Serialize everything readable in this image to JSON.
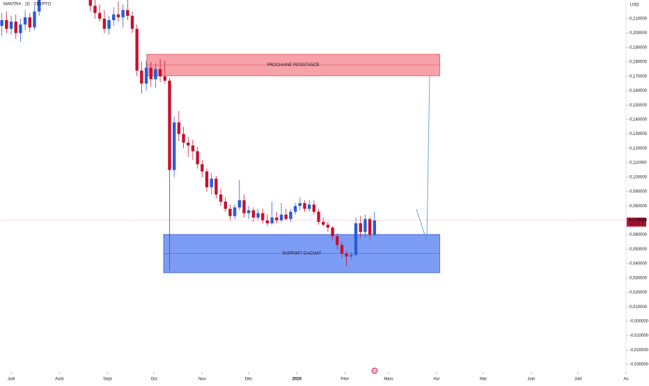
{
  "chart_data": {
    "type": "candlestick",
    "title": "MANTRA · 1D · CRYPTO",
    "currency": "USD",
    "up_color": "#2a5bd7",
    "down_color": "#c8102e",
    "xlim": [
      -7.2,
      396
    ],
    "ylim": [
      -0.0353,
      0.223
    ],
    "xticks": [
      {
        "value": 0,
        "label": "Juill"
      },
      {
        "value": 31,
        "label": "Août"
      },
      {
        "value": 62,
        "label": "Sept"
      },
      {
        "value": 92,
        "label": "Oct"
      },
      {
        "value": 123,
        "label": "Nov"
      },
      {
        "value": 153,
        "label": "Déc"
      },
      {
        "value": 184,
        "label": "2026"
      },
      {
        "value": 215,
        "label": "Févr"
      },
      {
        "value": 243,
        "label": "Mars"
      },
      {
        "value": 274,
        "label": "Avr"
      },
      {
        "value": 304,
        "label": "Mai"
      },
      {
        "value": 335,
        "label": "Juin"
      },
      {
        "value": 365,
        "label": "Juill"
      },
      {
        "value": 396,
        "label": "Ao"
      }
    ],
    "yticks": [
      {
        "value": 0.21,
        "label": "0,210000"
      },
      {
        "value": 0.2,
        "label": "0,200000"
      },
      {
        "value": 0.19,
        "label": "0,190000"
      },
      {
        "value": 0.18,
        "label": "0,180000"
      },
      {
        "value": 0.17,
        "label": "0,170000"
      },
      {
        "value": 0.16,
        "label": "0,160000"
      },
      {
        "value": 0.15,
        "label": "0,150000"
      },
      {
        "value": 0.14,
        "label": "0,140000"
      },
      {
        "value": 0.13,
        "label": "0,130000"
      },
      {
        "value": 0.12,
        "label": "0,120000"
      },
      {
        "value": 0.11,
        "label": "0,110000"
      },
      {
        "value": 0.1,
        "label": "0,100000"
      },
      {
        "value": 0.09,
        "label": "0,090000"
      },
      {
        "value": 0.08,
        "label": "0,080000"
      },
      {
        "value": 0.07,
        "label": "0,070000"
      },
      {
        "value": 0.06,
        "label": "0,060000"
      },
      {
        "value": 0.05,
        "label": "0,050000"
      },
      {
        "value": 0.04,
        "label": "0,040000"
      },
      {
        "value": 0.03,
        "label": "0,030000"
      },
      {
        "value": 0.02,
        "label": "0,020000"
      },
      {
        "value": 0.01,
        "label": "0,010000"
      },
      {
        "value": 0,
        "label": "-0,000000"
      },
      {
        "value": -0.01,
        "label": "-0,010000"
      },
      {
        "value": -0.02,
        "label": "-0,020000"
      },
      {
        "value": -0.03,
        "label": "-0,030000"
      }
    ],
    "x": [
      -6,
      -3,
      0,
      3,
      6,
      9,
      12,
      15,
      18,
      51,
      54,
      57,
      60,
      63,
      66,
      69,
      72,
      75,
      78,
      81,
      84,
      87,
      90,
      93,
      96,
      99,
      102,
      105,
      108,
      111,
      114,
      117,
      120,
      123,
      126,
      129,
      132,
      135,
      138,
      141,
      144,
      147,
      150,
      153,
      156,
      159,
      162,
      165,
      168,
      171,
      174,
      177,
      180,
      183,
      186,
      189,
      192,
      195,
      198,
      201,
      204,
      207,
      210,
      213,
      216,
      219,
      222,
      225,
      228,
      231,
      234
    ],
    "open": [
      0.205,
      0.209,
      0.203,
      0.208,
      0.2,
      0.206,
      0.211,
      0.204,
      0.215,
      0.226,
      0.219,
      0.214,
      0.21,
      0.203,
      0.209,
      0.213,
      0.211,
      0.216,
      0.212,
      0.203,
      0.174,
      0.165,
      0.176,
      0.168,
      0.175,
      0.17,
      0.167,
      0.105,
      0.138,
      0.13,
      0.124,
      0.122,
      0.118,
      0.109,
      0.104,
      0.093,
      0.099,
      0.088,
      0.083,
      0.078,
      0.073,
      0.079,
      0.084,
      0.075,
      0.077,
      0.072,
      0.075,
      0.07,
      0.068,
      0.072,
      0.07,
      0.074,
      0.071,
      0.076,
      0.08,
      0.082,
      0.078,
      0.081,
      0.076,
      0.069,
      0.067,
      0.065,
      0.059,
      0.053,
      0.047,
      0.045,
      0.046,
      0.068,
      0.062,
      0.071,
      0.06
    ],
    "high": [
      0.214,
      0.215,
      0.212,
      0.213,
      0.21,
      0.216,
      0.214,
      0.219,
      0.228,
      0.23,
      0.224,
      0.22,
      0.216,
      0.212,
      0.218,
      0.222,
      0.22,
      0.224,
      0.215,
      0.206,
      0.18,
      0.181,
      0.18,
      0.179,
      0.182,
      0.181,
      0.169,
      0.142,
      0.146,
      0.135,
      0.128,
      0.126,
      0.121,
      0.112,
      0.106,
      0.103,
      0.101,
      0.092,
      0.086,
      0.081,
      0.081,
      0.098,
      0.088,
      0.08,
      0.079,
      0.078,
      0.078,
      0.074,
      0.083,
      0.076,
      0.082,
      0.078,
      0.078,
      0.082,
      0.086,
      0.084,
      0.084,
      0.084,
      0.078,
      0.072,
      0.069,
      0.066,
      0.061,
      0.055,
      0.049,
      0.048,
      0.072,
      0.073,
      0.074,
      0.072,
      0.076
    ],
    "low": [
      0.198,
      0.2,
      0.199,
      0.196,
      0.194,
      0.202,
      0.201,
      0.202,
      0.212,
      0.215,
      0.21,
      0.208,
      0.2,
      0.199,
      0.205,
      0.208,
      0.204,
      0.209,
      0.2,
      0.17,
      0.158,
      0.16,
      0.163,
      0.162,
      0.166,
      0.165,
      0.035,
      0.1,
      0.125,
      0.12,
      0.114,
      0.112,
      0.106,
      0.1,
      0.09,
      0.088,
      0.085,
      0.08,
      0.076,
      0.07,
      0.071,
      0.077,
      0.072,
      0.071,
      0.069,
      0.07,
      0.068,
      0.066,
      0.067,
      0.068,
      0.069,
      0.07,
      0.069,
      0.074,
      0.077,
      0.076,
      0.076,
      0.074,
      0.067,
      0.066,
      0.062,
      0.056,
      0.05,
      0.044,
      0.038,
      0.043,
      0.045,
      0.058,
      0.058,
      0.057,
      0.059
    ],
    "close": [
      0.209,
      0.203,
      0.208,
      0.2,
      0.206,
      0.211,
      0.204,
      0.215,
      0.224,
      0.219,
      0.214,
      0.21,
      0.203,
      0.209,
      0.213,
      0.211,
      0.216,
      0.212,
      0.203,
      0.174,
      0.165,
      0.176,
      0.168,
      0.175,
      0.17,
      0.167,
      0.105,
      0.138,
      0.13,
      0.124,
      0.122,
      0.118,
      0.109,
      0.104,
      0.093,
      0.099,
      0.088,
      0.083,
      0.078,
      0.073,
      0.079,
      0.084,
      0.075,
      0.077,
      0.072,
      0.075,
      0.07,
      0.068,
      0.072,
      0.07,
      0.074,
      0.071,
      0.076,
      0.08,
      0.082,
      0.078,
      0.081,
      0.076,
      0.069,
      0.067,
      0.065,
      0.059,
      0.053,
      0.047,
      0.045,
      0.046,
      0.068,
      0.062,
      0.071,
      0.06,
      0.070039
    ],
    "zones": [
      {
        "label": "PROCHAINE RESISTANCE",
        "x": [
          87.4,
          276
        ],
        "y": [
          0.1853,
          0.1704
        ],
        "color": "#f7a1a8",
        "border": "#e0495a"
      },
      {
        "label": "SUPPORT D'ACHAT",
        "x": [
          98.2,
          276
        ],
        "y": [
          0.0602,
          0.0337
        ],
        "color": "#7d9cf5",
        "border": "#2f55d4"
      }
    ],
    "projection": {
      "x": [
        261,
        267.7,
        269.5
      ],
      "y": [
        0.0778,
        0.0555,
        0.1709
      ],
      "color": "#5b9be0"
    },
    "last_price": {
      "value": 0.070039,
      "label": "0,070039"
    },
    "countdown": "10:00:47"
  }
}
